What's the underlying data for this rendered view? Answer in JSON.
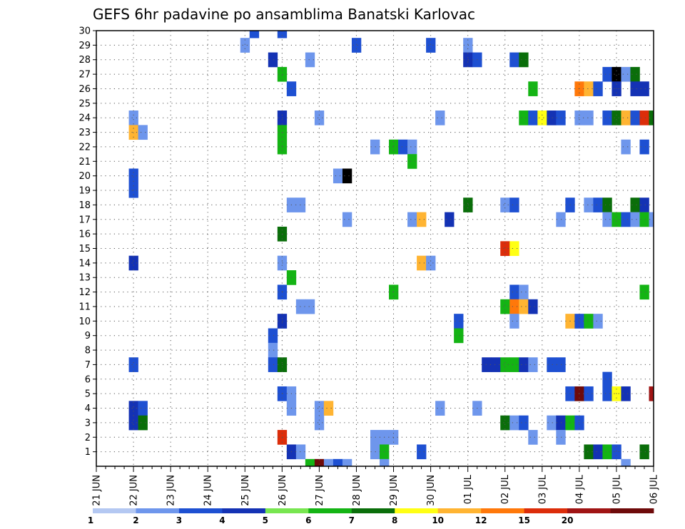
{
  "chart_data": {
    "type": "heatmap",
    "title": "GEFS 6hr padavine po ansamblima Banatski Karlovac",
    "xlabel": "",
    "ylabel": "",
    "x_tick_labels": [
      "21 JUN",
      "22 JUN",
      "23 JUN",
      "24 JUN",
      "25 JUN",
      "26 JUN",
      "27 JUN",
      "28 JUN",
      "29 JUN",
      "30 JUN",
      "01 JUL",
      "02 JUL",
      "03 JUL",
      "04 JUL",
      "05 JUL",
      "06 JUL"
    ],
    "xlim": [
      0,
      60
    ],
    "steps_per_day": 4,
    "y_tick_labels": [
      "1",
      "2",
      "3",
      "4",
      "5",
      "6",
      "7",
      "8",
      "9",
      "10",
      "11",
      "12",
      "13",
      "14",
      "15",
      "16",
      "17",
      "18",
      "19",
      "20",
      "21",
      "22",
      "23",
      "24",
      "25",
      "26",
      "27",
      "28",
      "29",
      "30"
    ],
    "ylim": [
      0,
      30
    ],
    "grid": true,
    "colorbar": {
      "labels": [
        "1",
        "2",
        "3",
        "4",
        "5",
        "6",
        "7",
        "8",
        "10",
        "12",
        "15",
        "20"
      ],
      "colors": [
        "#b4c8f2",
        "#6e96ec",
        "#1e50d2",
        "#1432b4",
        "#78e650",
        "#14b414",
        "#0a6e0a",
        "#ffff14",
        "#ffb432",
        "#ff780a",
        "#dc2d0a",
        "#a01414",
        "#6e0a0a"
      ]
    },
    "cells": [
      [
        17,
        30,
        2
      ],
      [
        20,
        30,
        2
      ],
      [
        16,
        29,
        1
      ],
      [
        28,
        29,
        2
      ],
      [
        36,
        29,
        2
      ],
      [
        40,
        29,
        1
      ],
      [
        19,
        28,
        3
      ],
      [
        23,
        28,
        1
      ],
      [
        40,
        28,
        3
      ],
      [
        41,
        28,
        2
      ],
      [
        45,
        28,
        2
      ],
      [
        46,
        28,
        6
      ],
      [
        20,
        27,
        5
      ],
      [
        55,
        27,
        2
      ],
      [
        56,
        27,
        13
      ],
      [
        57,
        27,
        1
      ],
      [
        58,
        27,
        6
      ],
      [
        21,
        26,
        2
      ],
      [
        47,
        26,
        5
      ],
      [
        52,
        26,
        9
      ],
      [
        53,
        26,
        8
      ],
      [
        54,
        26,
        2
      ],
      [
        56,
        26,
        3
      ],
      [
        58,
        26,
        3
      ],
      [
        59,
        26,
        3
      ],
      [
        4,
        24,
        1
      ],
      [
        20,
        24,
        3
      ],
      [
        24,
        24,
        1
      ],
      [
        37,
        24,
        1
      ],
      [
        46,
        24,
        5
      ],
      [
        47,
        24,
        2
      ],
      [
        48,
        24,
        7
      ],
      [
        49,
        24,
        3
      ],
      [
        50,
        24,
        2
      ],
      [
        52,
        24,
        1
      ],
      [
        53,
        24,
        1
      ],
      [
        55,
        24,
        2
      ],
      [
        56,
        24,
        6
      ],
      [
        57,
        24,
        8
      ],
      [
        58,
        24,
        2
      ],
      [
        59,
        24,
        10
      ],
      [
        60,
        24,
        6
      ],
      [
        4,
        23,
        8
      ],
      [
        5,
        23,
        1
      ],
      [
        20,
        23,
        5
      ],
      [
        20,
        22,
        5
      ],
      [
        30,
        22,
        1
      ],
      [
        32,
        22,
        5
      ],
      [
        33,
        22,
        2
      ],
      [
        34,
        22,
        1
      ],
      [
        57,
        22,
        1
      ],
      [
        59,
        22,
        2
      ],
      [
        34,
        21,
        5
      ],
      [
        4,
        20,
        2
      ],
      [
        26,
        20,
        1
      ],
      [
        27,
        20,
        13
      ],
      [
        4,
        19,
        2
      ],
      [
        21,
        18,
        1
      ],
      [
        22,
        18,
        1
      ],
      [
        40,
        18,
        6
      ],
      [
        44,
        18,
        1
      ],
      [
        45,
        18,
        2
      ],
      [
        51,
        18,
        2
      ],
      [
        53,
        18,
        1
      ],
      [
        54,
        18,
        2
      ],
      [
        55,
        18,
        6
      ],
      [
        58,
        18,
        6
      ],
      [
        59,
        18,
        3
      ],
      [
        27,
        17,
        1
      ],
      [
        34,
        17,
        1
      ],
      [
        35,
        17,
        8
      ],
      [
        38,
        17,
        3
      ],
      [
        50,
        17,
        1
      ],
      [
        55,
        17,
        1
      ],
      [
        56,
        17,
        5
      ],
      [
        57,
        17,
        2
      ],
      [
        58,
        17,
        1
      ],
      [
        59,
        17,
        5
      ],
      [
        60,
        17,
        1
      ],
      [
        20,
        16,
        6
      ],
      [
        44,
        15,
        10
      ],
      [
        45,
        15,
        7
      ],
      [
        4,
        14,
        3
      ],
      [
        20,
        14,
        1
      ],
      [
        35,
        14,
        8
      ],
      [
        36,
        14,
        1
      ],
      [
        21,
        13,
        5
      ],
      [
        20,
        12,
        2
      ],
      [
        32,
        12,
        5
      ],
      [
        45,
        12,
        2
      ],
      [
        46,
        12,
        1
      ],
      [
        59,
        12,
        5
      ],
      [
        22,
        11,
        1
      ],
      [
        23,
        11,
        1
      ],
      [
        44,
        11,
        5
      ],
      [
        45,
        11,
        9
      ],
      [
        46,
        11,
        8
      ],
      [
        47,
        11,
        3
      ],
      [
        20,
        10,
        3
      ],
      [
        39,
        10,
        2
      ],
      [
        45,
        10,
        1
      ],
      [
        51,
        10,
        8
      ],
      [
        52,
        10,
        2
      ],
      [
        53,
        10,
        5
      ],
      [
        54,
        10,
        1
      ],
      [
        19,
        9,
        2
      ],
      [
        39,
        9,
        5
      ],
      [
        19,
        8,
        1
      ],
      [
        4,
        7,
        2
      ],
      [
        19,
        7,
        2
      ],
      [
        20,
        7,
        6
      ],
      [
        42,
        7,
        3
      ],
      [
        43,
        7,
        3
      ],
      [
        44,
        7,
        5
      ],
      [
        45,
        7,
        5
      ],
      [
        46,
        7,
        3
      ],
      [
        47,
        7,
        1
      ],
      [
        49,
        7,
        2
      ],
      [
        50,
        7,
        2
      ],
      [
        55,
        6,
        2
      ],
      [
        20,
        5,
        2
      ],
      [
        21,
        5,
        1
      ],
      [
        51,
        5,
        2
      ],
      [
        52,
        5,
        12
      ],
      [
        53,
        5,
        2
      ],
      [
        55,
        5,
        2
      ],
      [
        56,
        5,
        7
      ],
      [
        57,
        5,
        3
      ],
      [
        60,
        5,
        11
      ],
      [
        4,
        4,
        3
      ],
      [
        5,
        4,
        2
      ],
      [
        21,
        4,
        1
      ],
      [
        24,
        4,
        1
      ],
      [
        25,
        4,
        8
      ],
      [
        37,
        4,
        1
      ],
      [
        41,
        4,
        1
      ],
      [
        4,
        3,
        3
      ],
      [
        5,
        3,
        6
      ],
      [
        24,
        3,
        1
      ],
      [
        44,
        3,
        6
      ],
      [
        45,
        3,
        1
      ],
      [
        46,
        3,
        2
      ],
      [
        49,
        3,
        1
      ],
      [
        50,
        3,
        3
      ],
      [
        51,
        3,
        5
      ],
      [
        52,
        3,
        2
      ],
      [
        20,
        2,
        10
      ],
      [
        30,
        2,
        1
      ],
      [
        31,
        2,
        1
      ],
      [
        32,
        2,
        1
      ],
      [
        47,
        2,
        1
      ],
      [
        50,
        2,
        1
      ],
      [
        21,
        1,
        3
      ],
      [
        22,
        1,
        1
      ],
      [
        30,
        1,
        1
      ],
      [
        31,
        1,
        5
      ],
      [
        35,
        1,
        2
      ],
      [
        53,
        1,
        6
      ],
      [
        54,
        1,
        3
      ],
      [
        55,
        1,
        5
      ],
      [
        56,
        1,
        2
      ],
      [
        59,
        1,
        6
      ],
      [
        23,
        0,
        5
      ],
      [
        24,
        0,
        12
      ],
      [
        25,
        0,
        1
      ],
      [
        26,
        0,
        2
      ],
      [
        27,
        0,
        1
      ],
      [
        31,
        0,
        1
      ],
      [
        57,
        0,
        1
      ]
    ]
  }
}
